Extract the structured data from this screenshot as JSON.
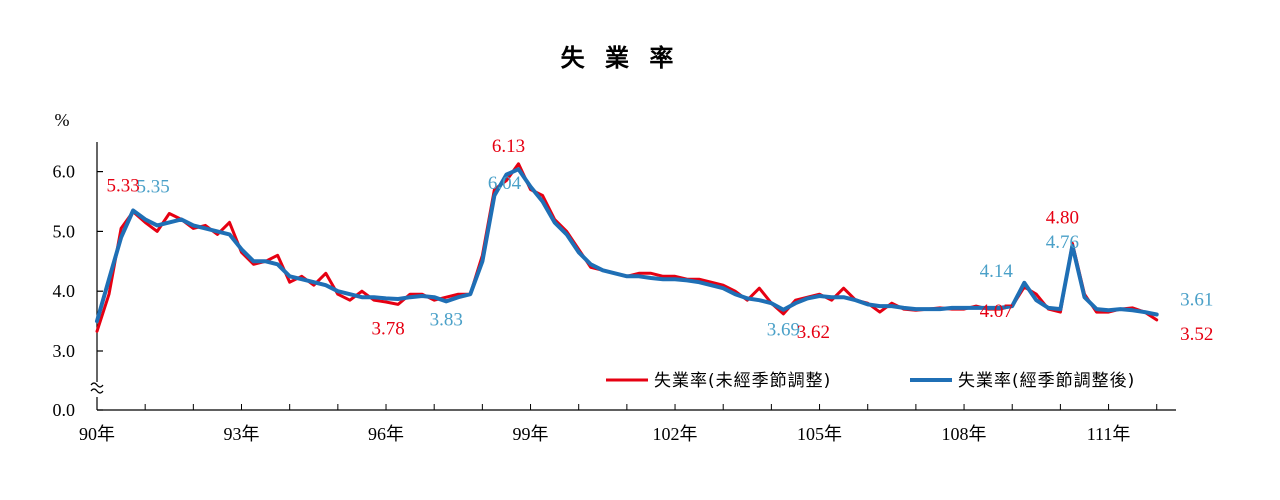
{
  "chart_data": {
    "type": "line",
    "title": "失 業 率",
    "ylabel": "%",
    "ylim": [
      0,
      6.5
    ],
    "y_axis_break": true,
    "y_ticks": [
      "0.0",
      "3.0",
      "4.0",
      "5.0",
      "6.0"
    ],
    "x_ticks": [
      "90年",
      "93年",
      "96年",
      "99年",
      "102年",
      "105年",
      "108年",
      "111年"
    ],
    "grid": false,
    "legend": "bottom-right",
    "colors": {
      "series_nsa": "#e60012",
      "series_sa": "#1f6fb5",
      "label_sa": "#4aa0c8"
    },
    "series": [
      {
        "name": "失業率(未經季節調整)",
        "x": [
          90.0,
          90.25,
          90.5,
          90.75,
          91.0,
          91.25,
          91.5,
          91.75,
          92.0,
          92.25,
          92.5,
          92.75,
          93.0,
          93.25,
          93.5,
          93.75,
          94.0,
          94.25,
          94.5,
          94.75,
          95.0,
          95.25,
          95.5,
          95.75,
          96.0,
          96.25,
          96.5,
          96.75,
          97.0,
          97.25,
          97.5,
          97.75,
          98.0,
          98.25,
          98.5,
          98.75,
          99.0,
          99.25,
          99.5,
          99.75,
          100.0,
          100.25,
          100.5,
          100.75,
          101.0,
          101.25,
          101.5,
          101.75,
          102.0,
          102.25,
          102.5,
          102.75,
          103.0,
          103.25,
          103.5,
          103.75,
          104.0,
          104.25,
          104.5,
          104.75,
          105.0,
          105.25,
          105.5,
          105.75,
          106.0,
          106.25,
          106.5,
          106.75,
          107.0,
          107.25,
          107.5,
          107.75,
          108.0,
          108.25,
          108.5,
          108.75,
          109.0,
          109.25,
          109.5,
          109.75,
          110.0,
          110.25,
          110.5,
          110.75,
          111.0,
          111.25,
          111.5,
          111.75,
          112.0
        ],
        "values": [
          3.33,
          3.95,
          5.05,
          5.33,
          5.15,
          5.0,
          5.3,
          5.2,
          5.05,
          5.1,
          4.95,
          5.15,
          4.65,
          4.45,
          4.5,
          4.6,
          4.15,
          4.25,
          4.1,
          4.3,
          3.95,
          3.85,
          4.0,
          3.85,
          3.82,
          3.78,
          3.95,
          3.95,
          3.85,
          3.9,
          3.95,
          3.95,
          4.6,
          5.7,
          5.85,
          6.13,
          5.7,
          5.6,
          5.2,
          5.0,
          4.7,
          4.4,
          4.35,
          4.3,
          4.25,
          4.3,
          4.3,
          4.25,
          4.25,
          4.2,
          4.2,
          4.15,
          4.1,
          4.0,
          3.85,
          4.05,
          3.8,
          3.62,
          3.85,
          3.9,
          3.95,
          3.85,
          4.05,
          3.85,
          3.8,
          3.65,
          3.8,
          3.7,
          3.68,
          3.7,
          3.72,
          3.7,
          3.7,
          3.75,
          3.7,
          3.7,
          3.75,
          4.07,
          3.95,
          3.7,
          3.65,
          4.8,
          3.95,
          3.65,
          3.65,
          3.7,
          3.72,
          3.65,
          3.52
        ]
      },
      {
        "name": "失業率(經季節調整後)",
        "x": [
          90.0,
          90.25,
          90.5,
          90.75,
          91.0,
          91.25,
          91.5,
          91.75,
          92.0,
          92.25,
          92.5,
          92.75,
          93.0,
          93.25,
          93.5,
          93.75,
          94.0,
          94.25,
          94.5,
          94.75,
          95.0,
          95.25,
          95.5,
          95.75,
          96.0,
          96.25,
          96.5,
          96.75,
          97.0,
          97.25,
          97.5,
          97.75,
          98.0,
          98.25,
          98.5,
          98.75,
          99.0,
          99.25,
          99.5,
          99.75,
          100.0,
          100.25,
          100.5,
          100.75,
          101.0,
          101.25,
          101.5,
          101.75,
          102.0,
          102.25,
          102.5,
          102.75,
          103.0,
          103.25,
          103.5,
          103.75,
          104.0,
          104.25,
          104.5,
          104.75,
          105.0,
          105.25,
          105.5,
          105.75,
          106.0,
          106.25,
          106.5,
          106.75,
          107.0,
          107.25,
          107.5,
          107.75,
          108.0,
          108.25,
          108.5,
          108.75,
          109.0,
          109.25,
          109.5,
          109.75,
          110.0,
          110.25,
          110.5,
          110.75,
          111.0,
          111.25,
          111.5,
          111.75,
          112.0
        ],
        "values": [
          3.5,
          4.2,
          4.9,
          5.35,
          5.2,
          5.1,
          5.15,
          5.2,
          5.1,
          5.05,
          5.0,
          4.95,
          4.7,
          4.5,
          4.5,
          4.45,
          4.25,
          4.2,
          4.15,
          4.1,
          4.0,
          3.95,
          3.9,
          3.9,
          3.88,
          3.87,
          3.9,
          3.92,
          3.9,
          3.83,
          3.9,
          3.95,
          4.5,
          5.6,
          5.95,
          6.04,
          5.75,
          5.5,
          5.15,
          4.95,
          4.65,
          4.45,
          4.35,
          4.3,
          4.25,
          4.25,
          4.22,
          4.2,
          4.2,
          4.18,
          4.15,
          4.1,
          4.05,
          3.95,
          3.88,
          3.85,
          3.8,
          3.69,
          3.8,
          3.88,
          3.92,
          3.9,
          3.9,
          3.85,
          3.78,
          3.75,
          3.75,
          3.72,
          3.7,
          3.7,
          3.7,
          3.72,
          3.72,
          3.72,
          3.72,
          3.72,
          3.75,
          4.14,
          3.85,
          3.72,
          3.7,
          4.76,
          3.9,
          3.7,
          3.68,
          3.7,
          3.68,
          3.65,
          3.61
        ]
      }
    ],
    "annotations": [
      {
        "text": "5.33",
        "x": 90.75,
        "y": 5.33,
        "series": 0
      },
      {
        "text": "5.35",
        "x": 90.75,
        "y": 5.35,
        "series": 1
      },
      {
        "text": "6.13",
        "x": 98.75,
        "y": 6.13,
        "series": 0
      },
      {
        "text": "6.04",
        "x": 98.75,
        "y": 6.04,
        "series": 1
      },
      {
        "text": "3.78",
        "x": 96.25,
        "y": 3.78,
        "series": 0
      },
      {
        "text": "3.83",
        "x": 97.25,
        "y": 3.83,
        "series": 1
      },
      {
        "text": "3.69",
        "x": 104.25,
        "y": 3.69,
        "series": 1
      },
      {
        "text": "3.62",
        "x": 104.25,
        "y": 3.62,
        "series": 0
      },
      {
        "text": "4.14",
        "x": 109.25,
        "y": 4.14,
        "series": 1
      },
      {
        "text": "4.07",
        "x": 109.25,
        "y": 4.07,
        "series": 0
      },
      {
        "text": "4.80",
        "x": 110.25,
        "y": 4.8,
        "series": 0
      },
      {
        "text": "4.76",
        "x": 110.25,
        "y": 4.76,
        "series": 1
      },
      {
        "text": "3.61",
        "x": 112.0,
        "y": 3.61,
        "series": 1
      },
      {
        "text": "3.52",
        "x": 112.0,
        "y": 3.52,
        "series": 0
      }
    ]
  }
}
